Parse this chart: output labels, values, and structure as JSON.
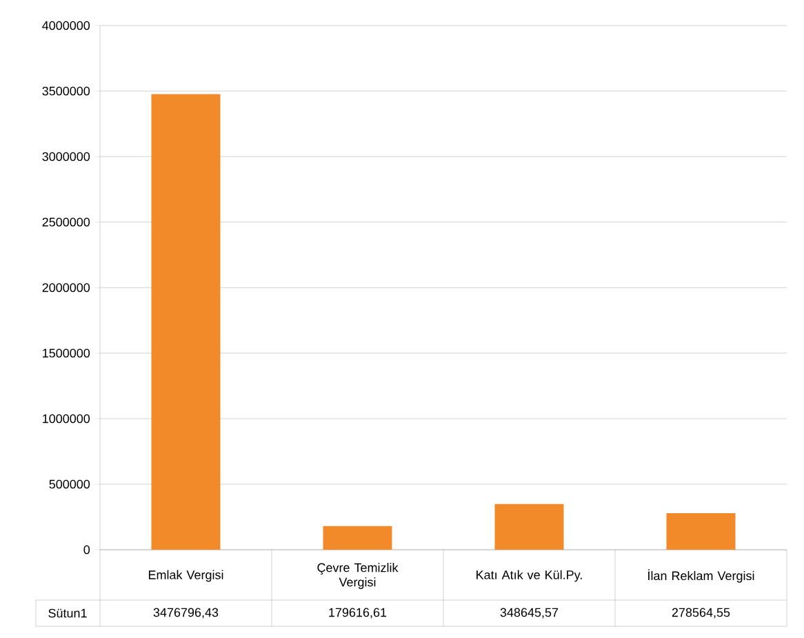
{
  "chart_data": {
    "type": "bar",
    "categories": [
      "Emlak Vergisi",
      "Çevre Temizlik Vergisi",
      "Katı Atık ve Kül.Py.",
      "İlan Reklam Vergisi"
    ],
    "series": [
      {
        "name": "Sütun1",
        "color": "#f28a2a",
        "values": [
          3476796.43,
          179616.61,
          348645.57,
          278564.55
        ],
        "value_labels": [
          "3476796,43",
          "179616,61",
          "348645,57",
          "278564,55"
        ]
      }
    ],
    "ylim": [
      0,
      4000000
    ],
    "yticks": [
      0,
      500000,
      1000000,
      1500000,
      2000000,
      2500000,
      3000000,
      3500000,
      4000000
    ],
    "grid": "y"
  }
}
